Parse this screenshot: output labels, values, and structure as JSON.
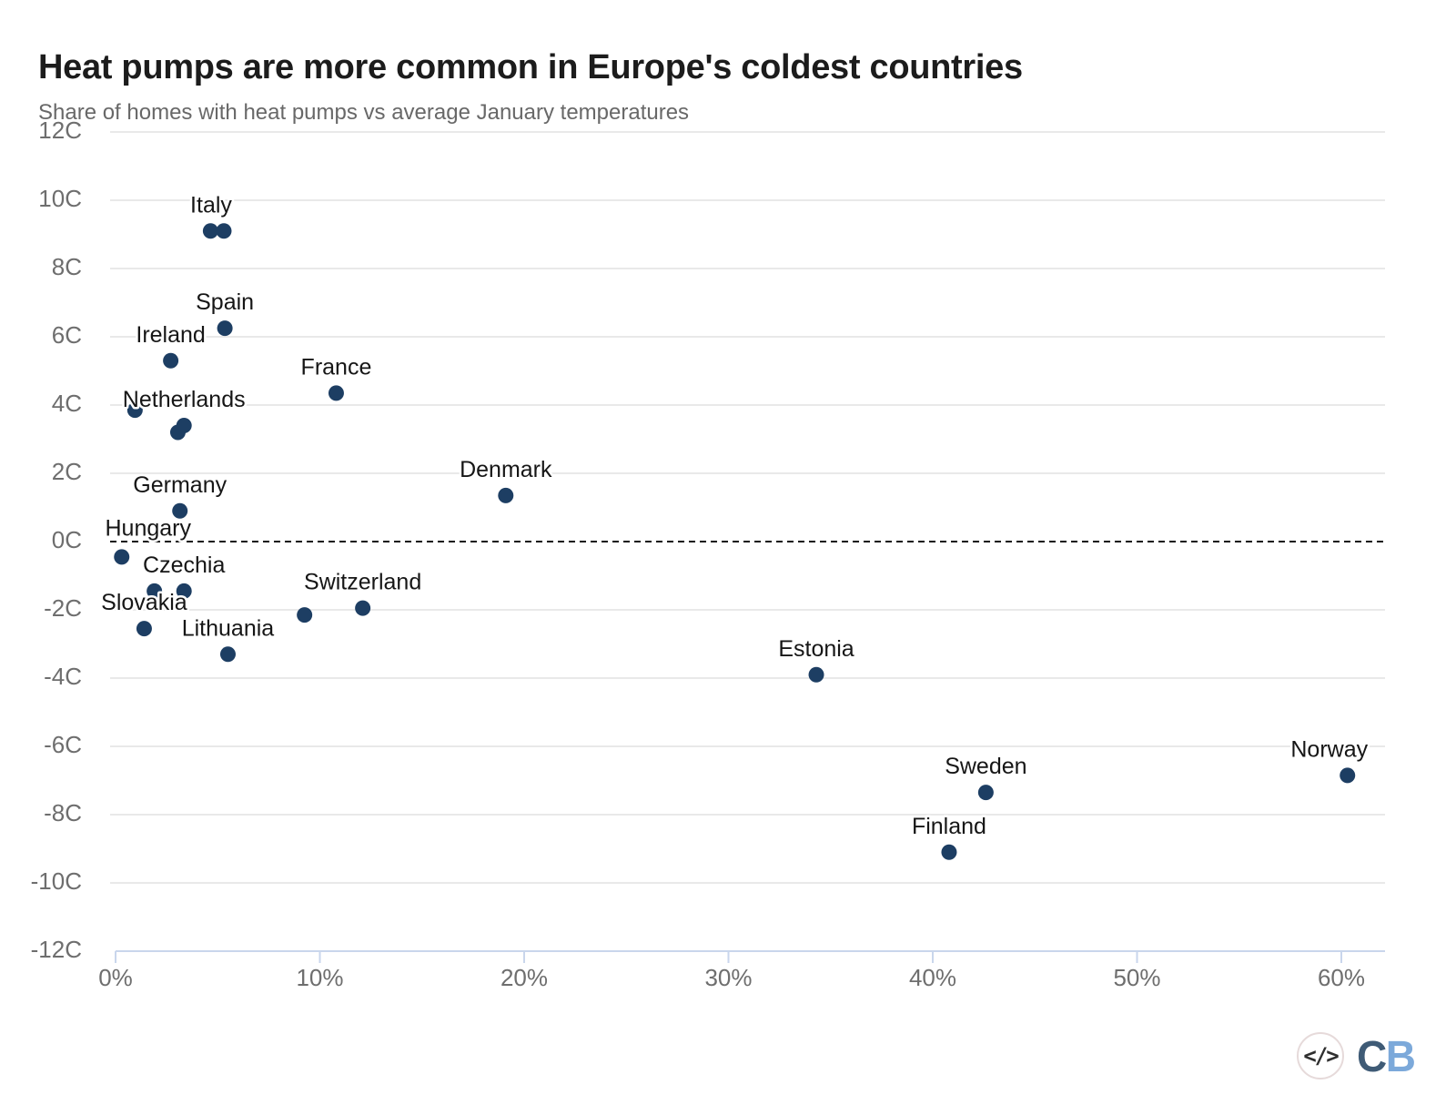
{
  "header": {
    "title": "Heat pumps are more common in Europe's coldest countries",
    "subtitle": "Share of homes with heat pumps vs average January temperatures"
  },
  "chart_data": {
    "type": "scatter",
    "title": "Heat pumps are more common in Europe's coldest countries",
    "xlabel": "Share of homes with heat pumps",
    "ylabel": "Average January temperature",
    "x_range": [
      0,
      62
    ],
    "y_range": [
      -12,
      12
    ],
    "grid": true,
    "legend": "none",
    "x_ticks": [
      {
        "label": "0%",
        "value": 0
      },
      {
        "label": "10%",
        "value": 10
      },
      {
        "label": "20%",
        "value": 20
      },
      {
        "label": "30%",
        "value": 30
      },
      {
        "label": "40%",
        "value": 40
      },
      {
        "label": "50%",
        "value": 50
      },
      {
        "label": "60%",
        "value": 60
      }
    ],
    "y_ticks": [
      {
        "label": "12C",
        "value": 12
      },
      {
        "label": "10C",
        "value": 10
      },
      {
        "label": "8C",
        "value": 8
      },
      {
        "label": "6C",
        "value": 6
      },
      {
        "label": "4C",
        "value": 4
      },
      {
        "label": "2C",
        "value": 2
      },
      {
        "label": "0C",
        "value": 0
      },
      {
        "label": "-2C",
        "value": -2
      },
      {
        "label": "-4C",
        "value": -4
      },
      {
        "label": "-6C",
        "value": -6
      },
      {
        "label": "-8C",
        "value": -8
      },
      {
        "label": "-10C",
        "value": -10
      },
      {
        "label": "-12C",
        "value": -12
      }
    ],
    "grid_values": [
      12,
      10,
      8,
      6,
      4,
      2,
      -2,
      -4,
      -6,
      -8,
      -10
    ],
    "zero_line_value": 0,
    "points": [
      {
        "label": "",
        "share_pct": 4.65,
        "jan_temp_c": 9.1
      },
      {
        "label": "Italy",
        "share_pct": 5.3,
        "jan_temp_c": 9.1,
        "label_dx": -14
      },
      {
        "label": "Spain",
        "share_pct": 5.35,
        "jan_temp_c": 6.25
      },
      {
        "label": "Ireland",
        "share_pct": 2.7,
        "jan_temp_c": 5.3
      },
      {
        "label": "France",
        "share_pct": 10.8,
        "jan_temp_c": 4.35
      },
      {
        "label": "",
        "share_pct": 0.95,
        "jan_temp_c": 3.85
      },
      {
        "label": "Netherlands",
        "share_pct": 3.35,
        "jan_temp_c": 3.4
      },
      {
        "label": "",
        "share_pct": 3.05,
        "jan_temp_c": 3.2
      },
      {
        "label": "Germany",
        "share_pct": 3.15,
        "jan_temp_c": 0.9
      },
      {
        "label": "Hungary",
        "share_pct": 0.3,
        "jan_temp_c": -0.45,
        "label_dx": 29,
        "label_dy": -30
      },
      {
        "label": "",
        "share_pct": 1.9,
        "jan_temp_c": -1.45
      },
      {
        "label": "Czechia",
        "share_pct": 3.35,
        "jan_temp_c": -1.45
      },
      {
        "label": "Slovakia",
        "share_pct": 1.4,
        "jan_temp_c": -2.55
      },
      {
        "label": "",
        "share_pct": 9.25,
        "jan_temp_c": -2.15
      },
      {
        "label": "Switzerland",
        "share_pct": 12.1,
        "jan_temp_c": -1.95
      },
      {
        "label": "Lithuania",
        "share_pct": 5.5,
        "jan_temp_c": -3.3
      },
      {
        "label": "Denmark",
        "share_pct": 19.1,
        "jan_temp_c": 1.35
      },
      {
        "label": "Estonia",
        "share_pct": 34.3,
        "jan_temp_c": -3.9
      },
      {
        "label": "Sweden",
        "share_pct": 42.6,
        "jan_temp_c": -7.35
      },
      {
        "label": "Finland",
        "share_pct": 40.8,
        "jan_temp_c": -9.1
      },
      {
        "label": "Norway",
        "share_pct": 60.3,
        "jan_temp_c": -6.85,
        "label_dx": -20
      }
    ]
  },
  "footer": {
    "code_glyph": "</>",
    "logo_c": "C",
    "logo_b": "B"
  },
  "colors": {
    "dot": "#1d3e63",
    "grid": "#e9e9e9",
    "zero_line": "#141414",
    "axis": "#c9d6ec",
    "tick_text": "#6e6e6e",
    "label_text": "#161616",
    "title": "#1c1c1c",
    "subtitle": "#686868",
    "logo_c_color": "#3f5b76",
    "logo_b_color": "#7ca9da",
    "logo_ring": "#e6dada",
    "code_icon_color": "#2f2f2f"
  }
}
